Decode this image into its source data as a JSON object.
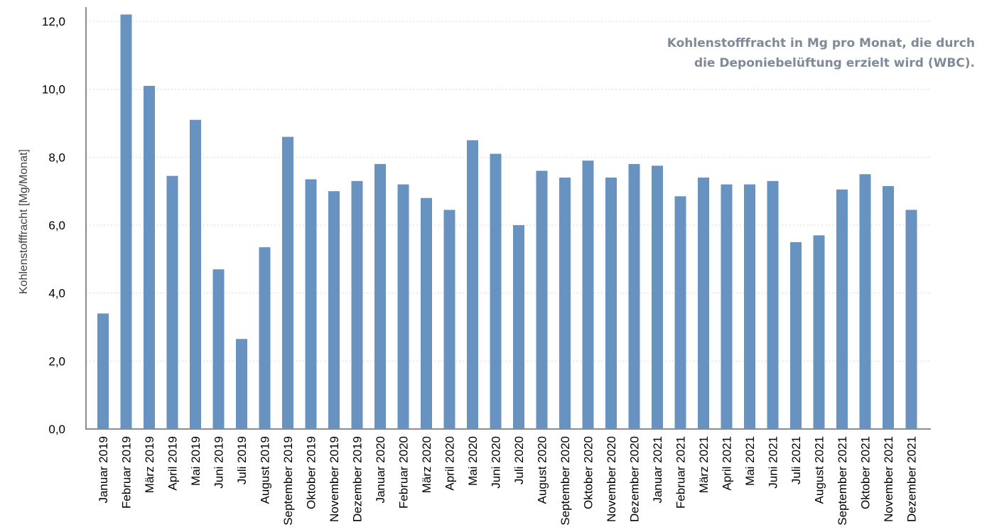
{
  "chart_data": {
    "type": "bar",
    "title_lines": [
      "Kohlenstofffracht in Mg pro Monat, die durch",
      "die Deponiebelüftung erzielt wird (WBC)."
    ],
    "xlabel": "",
    "ylabel": "Kohlenstofffracht [Mg/Monat]",
    "ylim": [
      0,
      12
    ],
    "yticks": [
      "0,0",
      "2,0",
      "4,0",
      "6,0",
      "8,0",
      "10,0",
      "12,0"
    ],
    "grid": true,
    "bar_color": "#6892c0",
    "categories": [
      "Januar 2019",
      "Februar 2019",
      "März 2019",
      "April 2019",
      "Mai 2019",
      "Juni 2019",
      "Juli 2019",
      "August 2019",
      "September 2019",
      "Oktober 2019",
      "November 2019",
      "Dezember 2019",
      "Januar 2020",
      "Februar 2020",
      "März 2020",
      "April 2020",
      "Mai 2020",
      "Juni 2020",
      "Juli 2020",
      "August 2020",
      "September 2020",
      "Oktober 2020",
      "November 2020",
      "Dezember 2020",
      "Januar 2021",
      "Februar 2021",
      "März 2021",
      "April 2021",
      "Mai 2021",
      "Juni 2021",
      "Juli 2021",
      "August 2021",
      "September 2021",
      "Oktober 2021",
      "November 2021",
      "Dezember 2021"
    ],
    "values": [
      3.4,
      12.2,
      10.1,
      7.45,
      9.1,
      4.7,
      2.65,
      5.35,
      8.6,
      7.35,
      7.0,
      7.3,
      7.8,
      7.2,
      6.8,
      6.45,
      8.5,
      8.1,
      6.0,
      7.6,
      7.4,
      7.9,
      7.4,
      7.8,
      7.75,
      6.85,
      7.4,
      7.2,
      7.2,
      7.3,
      5.5,
      5.7,
      7.05,
      7.5,
      7.15,
      6.45
    ]
  }
}
